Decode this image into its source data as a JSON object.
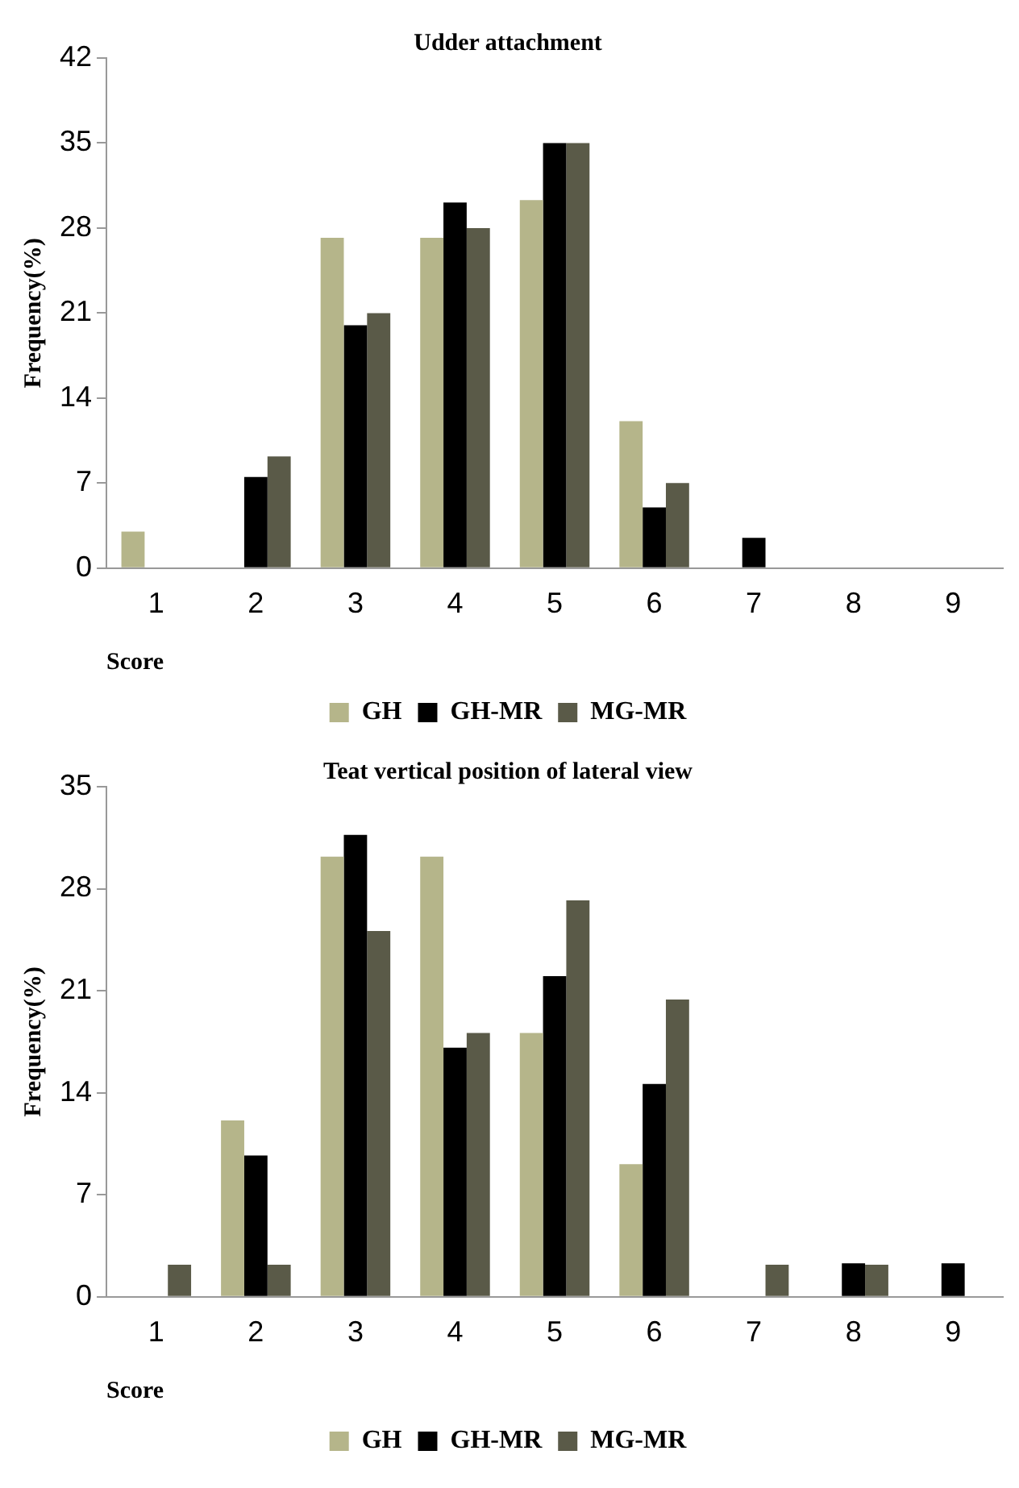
{
  "chart_data": [
    {
      "type": "bar",
      "title": "Udder attachment",
      "xlabel": "Score",
      "ylabel": "Frequency(%)",
      "categories": [
        "1",
        "2",
        "3",
        "4",
        "5",
        "6",
        "7",
        "8",
        "9"
      ],
      "series": [
        {
          "name": "GH",
          "color": "#b5b58a",
          "values": [
            3,
            0,
            27.2,
            27.2,
            30.3,
            12.1,
            0,
            0,
            0
          ]
        },
        {
          "name": "GH-MR",
          "color": "#000000",
          "values": [
            0,
            7.5,
            20,
            30.1,
            35,
            5,
            2.5,
            0,
            0
          ]
        },
        {
          "name": "MG-MR",
          "color": "#5a5a48",
          "values": [
            0,
            9.2,
            21,
            28,
            35,
            7,
            0,
            0,
            0
          ]
        }
      ],
      "ylim": [
        0,
        42
      ],
      "yticks": [
        0,
        7,
        14,
        21,
        28,
        35,
        42
      ],
      "grid": false,
      "legend": "bottom"
    },
    {
      "type": "bar",
      "title": "Teat vertical position of lateral view",
      "xlabel": "Score",
      "ylabel": "Frequency(%)",
      "categories": [
        "1",
        "2",
        "3",
        "4",
        "5",
        "6",
        "7",
        "8",
        "9"
      ],
      "series": [
        {
          "name": "GH",
          "color": "#b5b58a",
          "values": [
            0,
            12.1,
            30.2,
            30.2,
            18.1,
            9.1,
            0,
            0,
            0
          ]
        },
        {
          "name": "GH-MR",
          "color": "#000000",
          "values": [
            0,
            9.7,
            31.7,
            17.1,
            22,
            14.6,
            0,
            2.3,
            2.3
          ]
        },
        {
          "name": "MG-MR",
          "color": "#5a5a48",
          "values": [
            2.2,
            2.2,
            25.1,
            18.1,
            27.2,
            20.4,
            2.2,
            2.2,
            0
          ]
        }
      ],
      "ylim": [
        0,
        35
      ],
      "yticks": [
        0,
        7,
        14,
        21,
        28,
        35
      ],
      "grid": false,
      "legend": "bottom"
    }
  ]
}
